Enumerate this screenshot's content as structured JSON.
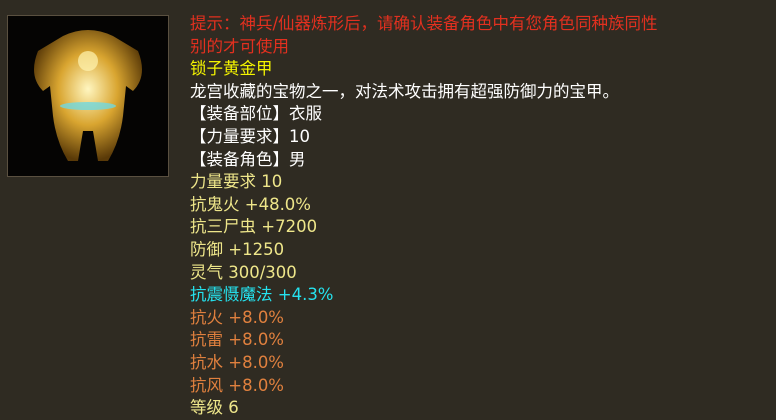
{
  "item": {
    "icon": "golden-armor-icon",
    "hint_line1": "提示：神兵/仙器炼形后，请确认装备角色中有您角色同种族同性",
    "hint_line2": "别的才可使用",
    "name": "锁子黄金甲",
    "description": "龙宫收藏的宝物之一，对法术攻击拥有超强防御力的宝甲。",
    "slot": "【装备部位】衣服",
    "strength_req": "【力量要求】10",
    "role": "【装备角色】男",
    "stats": [
      "力量要求 10",
      "抗鬼火 +48.0%",
      "抗三尸虫 +7200",
      "防御 +1250",
      "灵气 300/300"
    ],
    "special": "抗震慑魔法 +4.3%",
    "resists": [
      "抗火 +8.0%",
      "抗雷 +8.0%",
      "抗水 +8.0%",
      "抗风 +8.0%"
    ],
    "level": "等级 6"
  },
  "colors": {
    "hint": "#e2301f",
    "name": "#f4f400",
    "stat": "#eee68a",
    "special": "#25e2ee",
    "resist": "#e0803e",
    "background": "#2f2b22"
  }
}
